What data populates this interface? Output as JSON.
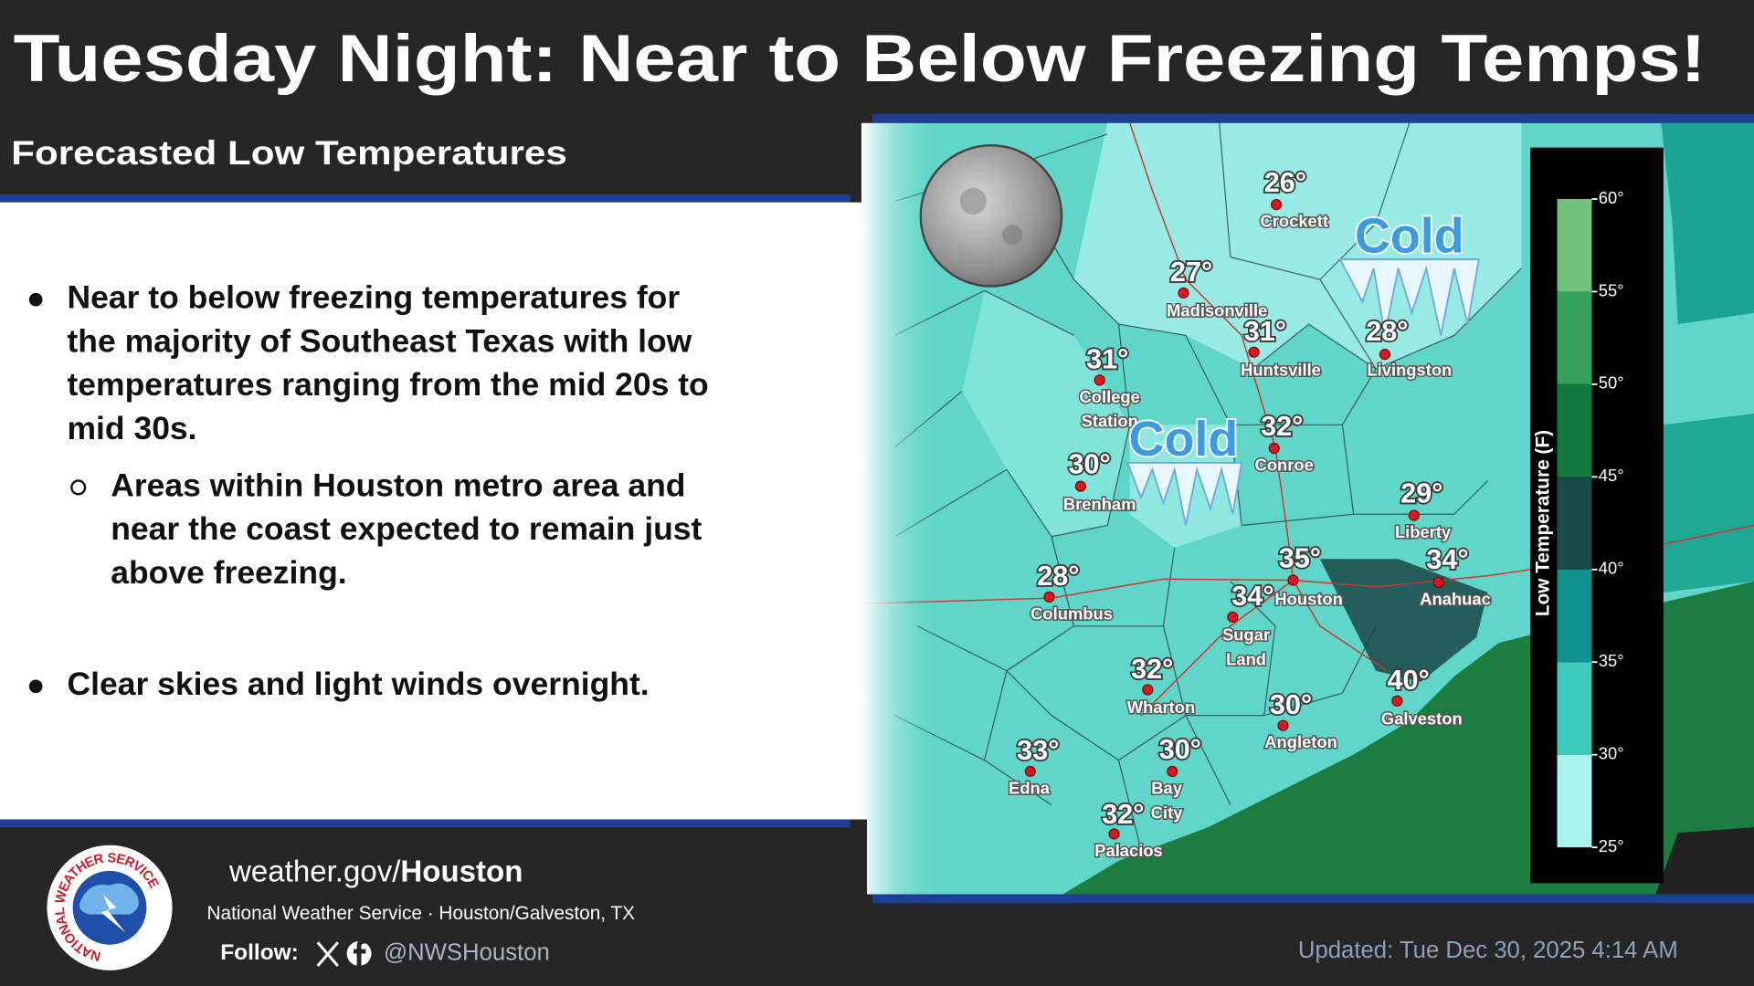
{
  "header": {
    "title": "Tuesday Night: Near to Below Freezing Temps!",
    "subtitle": "Forecasted Low Temperatures"
  },
  "bullets": [
    {
      "lines": [
        "Near to below freezing temperatures for",
        "the majority of Southeast Texas with low",
        "temperatures ranging from the mid 20s to",
        "mid 30s."
      ],
      "sub": [
        {
          "lines": [
            "Areas within Houston metro area and",
            "near the coast expected to remain just",
            "above freezing."
          ]
        }
      ]
    },
    {
      "lines": [
        "Clear skies and light winds overnight."
      ],
      "sub": []
    }
  ],
  "map": {
    "cold_labels": [
      "Cold",
      "Cold"
    ],
    "cities": [
      {
        "temp": "26°",
        "name": [
          "Crockett"
        ]
      },
      {
        "temp": "27°",
        "name": [
          "Madisonville"
        ]
      },
      {
        "temp": "31°",
        "name": [
          "Huntsville"
        ]
      },
      {
        "temp": "28°",
        "name": [
          "Livingston"
        ]
      },
      {
        "temp": "31°",
        "name": [
          "College",
          "Station"
        ]
      },
      {
        "temp": "32°",
        "name": [
          "Conroe"
        ]
      },
      {
        "temp": "30°",
        "name": [
          "Brenham"
        ]
      },
      {
        "temp": "29°",
        "name": [
          "Liberty"
        ]
      },
      {
        "temp": "35°",
        "name": [
          "Houston"
        ]
      },
      {
        "temp": "34°",
        "name": [
          "Anahuac"
        ]
      },
      {
        "temp": "34°",
        "name": [
          "Sugar",
          "Land"
        ]
      },
      {
        "temp": "28°",
        "name": [
          "Columbus"
        ]
      },
      {
        "temp": "32°",
        "name": [
          "Wharton"
        ]
      },
      {
        "temp": "40°",
        "name": [
          "Galveston"
        ]
      },
      {
        "temp": "30°",
        "name": [
          "Angleton"
        ]
      },
      {
        "temp": "33°",
        "name": [
          "Edna"
        ]
      },
      {
        "temp": "30°",
        "name": [
          "Bay",
          "City"
        ]
      },
      {
        "temp": "32°",
        "name": [
          "Palacios"
        ]
      }
    ],
    "legend": {
      "title": "Low Temperature (F)",
      "labels": [
        "60°",
        "55°",
        "50°",
        "45°",
        "40°",
        "35°",
        "30°",
        "25°"
      ],
      "colors": [
        "#72c27e",
        "#36a15a",
        "#137b3f",
        "#1a4a4a",
        "#10938f",
        "#3ccabc",
        "#a9f4ef"
      ]
    }
  },
  "footer": {
    "logo_text": "NATIONAL WEATHER SERVICE",
    "website": [
      "weather.gov/",
      "Houston"
    ],
    "office": "National Weather Service · Houston/Galveston, TX",
    "follow": "Follow:",
    "handle": "@NWSHouston",
    "updated": "Updated: Tue Dec 30, 2025 4:14 AM"
  }
}
